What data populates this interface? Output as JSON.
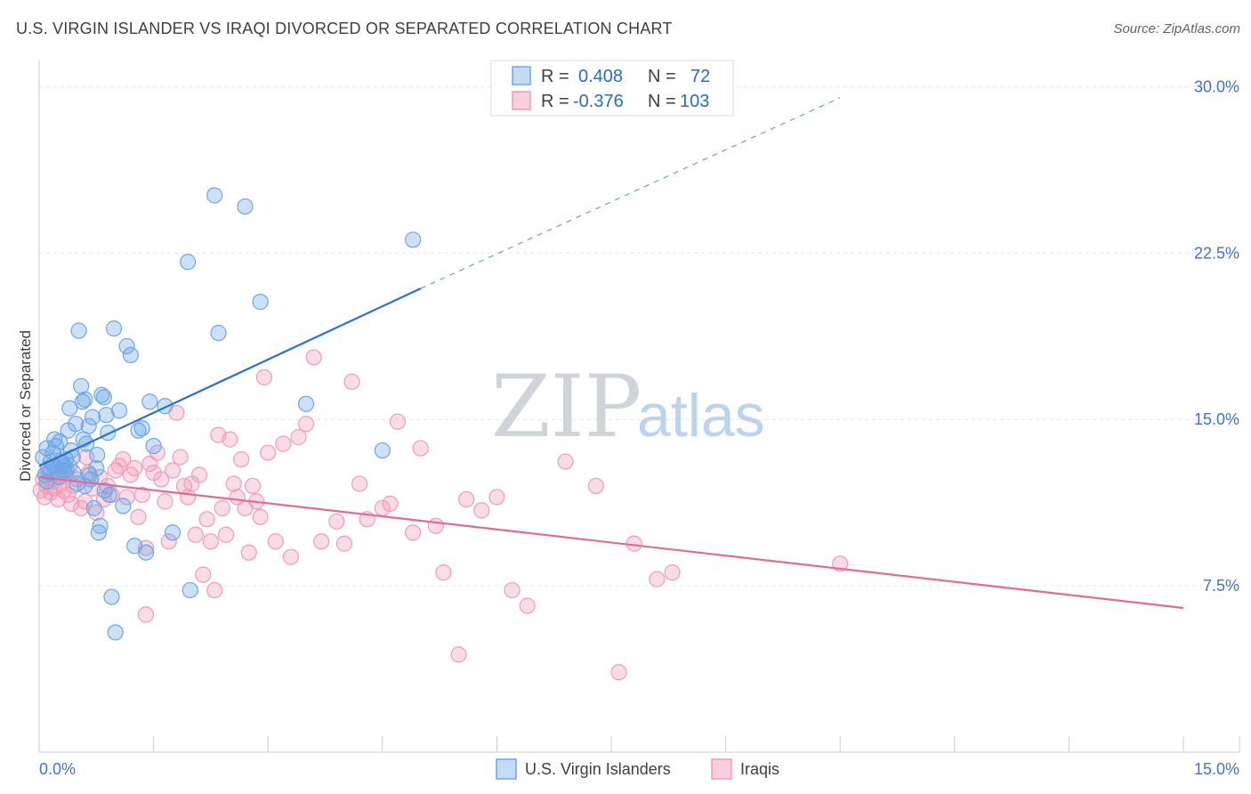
{
  "title": "U.S. VIRGIN ISLANDER VS IRAQI DIVORCED OR SEPARATED CORRELATION CHART",
  "source": "Source: ZipAtlas.com",
  "watermark": {
    "zip": "ZIP",
    "atlas": "atlas"
  },
  "legend": {
    "rows": [
      {
        "r_label": "R =",
        "r_value": "0.408",
        "n_label": "N =",
        "n_value": "72"
      },
      {
        "r_label": "R =",
        "r_value": "-0.376",
        "n_label": "N =",
        "n_value": "103"
      }
    ]
  },
  "colors": {
    "blue": "#6ea6e8",
    "blue_line": "#2a72c9",
    "pink": "#f29ab8",
    "pink_line": "#e46a96",
    "grid": "#e3e6ea",
    "tick_text": "#4472c4"
  },
  "chart_data": {
    "type": "scatter",
    "title": "U.S. VIRGIN ISLANDER VS IRAQI DIVORCED OR SEPARATED CORRELATION CHART",
    "xlabel": "",
    "ylabel": "Divorced or Separated",
    "xlim": [
      0,
      15
    ],
    "ylim": [
      0,
      31.5
    ],
    "x_tick_labels": [
      "0.0%",
      "15.0%"
    ],
    "y_ticks": [
      7.5,
      15.0,
      22.5,
      30.0
    ],
    "y_tick_labels": [
      "7.5%",
      "15.0%",
      "22.5%",
      "30.0%"
    ],
    "grid": true,
    "legend_position": "top-center",
    "series": [
      {
        "name": "U.S. Virgin Islanders",
        "color": "#6ea6e8",
        "trend": {
          "x": [
            0.0,
            5.0
          ],
          "y": [
            12.9,
            20.9
          ],
          "dashed_to": [
            10.5,
            29.5
          ]
        },
        "points": [
          [
            0.05,
            13.3
          ],
          [
            0.08,
            12.5
          ],
          [
            0.1,
            13.7
          ],
          [
            0.12,
            12.8
          ],
          [
            0.15,
            13.1
          ],
          [
            0.18,
            13.5
          ],
          [
            0.2,
            12.9
          ],
          [
            0.22,
            13.8
          ],
          [
            0.25,
            12.4
          ],
          [
            0.27,
            14.0
          ],
          [
            0.3,
            13.0
          ],
          [
            0.32,
            12.7
          ],
          [
            0.35,
            13.2
          ],
          [
            0.38,
            14.5
          ],
          [
            0.4,
            15.5
          ],
          [
            0.42,
            13.6
          ],
          [
            0.45,
            12.6
          ],
          [
            0.48,
            14.8
          ],
          [
            0.5,
            12.1
          ],
          [
            0.52,
            19.0
          ],
          [
            0.55,
            16.5
          ],
          [
            0.57,
            15.8
          ],
          [
            0.6,
            15.9
          ],
          [
            0.62,
            13.9
          ],
          [
            0.65,
            14.7
          ],
          [
            0.68,
            12.3
          ],
          [
            0.7,
            15.1
          ],
          [
            0.72,
            11.0
          ],
          [
            0.75,
            12.8
          ],
          [
            0.78,
            9.9
          ],
          [
            0.8,
            10.2
          ],
          [
            0.82,
            16.1
          ],
          [
            0.85,
            16.0
          ],
          [
            0.88,
            15.2
          ],
          [
            0.9,
            14.4
          ],
          [
            0.92,
            11.6
          ],
          [
            0.95,
            7.0
          ],
          [
            0.98,
            19.1
          ],
          [
            1.0,
            5.4
          ],
          [
            1.05,
            15.4
          ],
          [
            1.1,
            11.1
          ],
          [
            1.15,
            18.3
          ],
          [
            1.2,
            17.9
          ],
          [
            1.25,
            9.3
          ],
          [
            1.3,
            14.5
          ],
          [
            1.35,
            14.6
          ],
          [
            1.4,
            9.0
          ],
          [
            1.45,
            15.8
          ],
          [
            1.5,
            13.8
          ],
          [
            1.65,
            15.6
          ],
          [
            1.75,
            9.9
          ],
          [
            1.95,
            22.1
          ],
          [
            1.98,
            7.3
          ],
          [
            2.3,
            25.1
          ],
          [
            2.35,
            18.9
          ],
          [
            2.7,
            24.6
          ],
          [
            2.9,
            20.3
          ],
          [
            3.5,
            15.7
          ],
          [
            4.5,
            13.6
          ],
          [
            4.9,
            23.1
          ],
          [
            0.15,
            12.6
          ],
          [
            0.28,
            13.1
          ],
          [
            0.33,
            12.9
          ],
          [
            0.44,
            13.3
          ],
          [
            0.58,
            14.1
          ],
          [
            0.66,
            12.5
          ],
          [
            0.76,
            13.4
          ],
          [
            0.86,
            11.8
          ],
          [
            0.6,
            12.0
          ],
          [
            0.1,
            12.2
          ],
          [
            0.2,
            14.1
          ],
          [
            0.36,
            12.7
          ]
        ]
      },
      {
        "name": "Iraqis",
        "color": "#f29ab8",
        "trend": {
          "x": [
            0.0,
            15.0
          ],
          "y": [
            12.4,
            6.5
          ]
        },
        "points": [
          [
            0.02,
            11.8
          ],
          [
            0.05,
            12.3
          ],
          [
            0.07,
            11.5
          ],
          [
            0.1,
            12.0
          ],
          [
            0.12,
            12.6
          ],
          [
            0.15,
            11.7
          ],
          [
            0.18,
            12.2
          ],
          [
            0.2,
            11.9
          ],
          [
            0.22,
            12.8
          ],
          [
            0.25,
            11.4
          ],
          [
            0.28,
            12.4
          ],
          [
            0.3,
            12.1
          ],
          [
            0.32,
            11.8
          ],
          [
            0.35,
            12.5
          ],
          [
            0.38,
            11.6
          ],
          [
            0.4,
            12.9
          ],
          [
            0.42,
            11.2
          ],
          [
            0.45,
            12.0
          ],
          [
            0.5,
            12.3
          ],
          [
            0.55,
            11.0
          ],
          [
            0.6,
            11.3
          ],
          [
            0.62,
            13.3
          ],
          [
            0.65,
            12.6
          ],
          [
            0.7,
            11.9
          ],
          [
            0.75,
            10.8
          ],
          [
            0.8,
            12.4
          ],
          [
            0.85,
            11.4
          ],
          [
            0.9,
            12.0
          ],
          [
            0.95,
            11.6
          ],
          [
            1.0,
            12.7
          ],
          [
            1.05,
            12.9
          ],
          [
            1.1,
            13.2
          ],
          [
            1.15,
            11.5
          ],
          [
            1.2,
            12.5
          ],
          [
            1.25,
            12.8
          ],
          [
            1.3,
            10.6
          ],
          [
            1.35,
            11.6
          ],
          [
            1.4,
            9.2
          ],
          [
            1.45,
            13.0
          ],
          [
            1.5,
            12.6
          ],
          [
            1.55,
            13.5
          ],
          [
            1.6,
            12.3
          ],
          [
            1.65,
            11.3
          ],
          [
            1.7,
            9.5
          ],
          [
            1.75,
            12.7
          ],
          [
            1.8,
            15.3
          ],
          [
            1.85,
            13.3
          ],
          [
            1.9,
            12.0
          ],
          [
            1.95,
            11.5
          ],
          [
            2.0,
            12.1
          ],
          [
            2.05,
            9.8
          ],
          [
            2.1,
            12.5
          ],
          [
            2.15,
            8.0
          ],
          [
            2.2,
            10.5
          ],
          [
            2.25,
            9.5
          ],
          [
            2.3,
            7.3
          ],
          [
            2.35,
            14.3
          ],
          [
            2.4,
            11.0
          ],
          [
            2.45,
            9.8
          ],
          [
            2.5,
            14.1
          ],
          [
            2.55,
            12.1
          ],
          [
            2.6,
            11.5
          ],
          [
            2.65,
            13.2
          ],
          [
            2.7,
            11.0
          ],
          [
            2.75,
            9.0
          ],
          [
            2.8,
            12.0
          ],
          [
            2.85,
            11.3
          ],
          [
            2.9,
            10.6
          ],
          [
            2.95,
            16.9
          ],
          [
            3.0,
            13.5
          ],
          [
            3.1,
            9.5
          ],
          [
            3.2,
            13.9
          ],
          [
            3.3,
            8.8
          ],
          [
            3.4,
            14.2
          ],
          [
            3.5,
            14.8
          ],
          [
            3.6,
            17.8
          ],
          [
            3.7,
            9.5
          ],
          [
            3.9,
            10.4
          ],
          [
            4.0,
            9.4
          ],
          [
            4.1,
            16.7
          ],
          [
            4.2,
            12.1
          ],
          [
            4.3,
            10.5
          ],
          [
            4.5,
            11.0
          ],
          [
            4.6,
            11.2
          ],
          [
            4.7,
            14.9
          ],
          [
            4.9,
            9.9
          ],
          [
            5.0,
            13.7
          ],
          [
            5.2,
            10.2
          ],
          [
            5.3,
            8.1
          ],
          [
            5.6,
            11.4
          ],
          [
            5.8,
            10.9
          ],
          [
            6.0,
            11.5
          ],
          [
            6.2,
            7.3
          ],
          [
            6.4,
            6.6
          ],
          [
            6.9,
            13.1
          ],
          [
            7.3,
            12.0
          ],
          [
            7.8,
            9.4
          ],
          [
            8.1,
            7.8
          ],
          [
            8.3,
            8.1
          ],
          [
            10.5,
            8.5
          ],
          [
            5.5,
            4.4
          ],
          [
            7.6,
            3.6
          ],
          [
            1.4,
            6.2
          ]
        ]
      }
    ]
  },
  "bottom_legend": [
    {
      "label": "U.S. Virgin Islanders",
      "color": "#6ea6e8"
    },
    {
      "label": "Iraqis",
      "color": "#f29ab8"
    }
  ]
}
